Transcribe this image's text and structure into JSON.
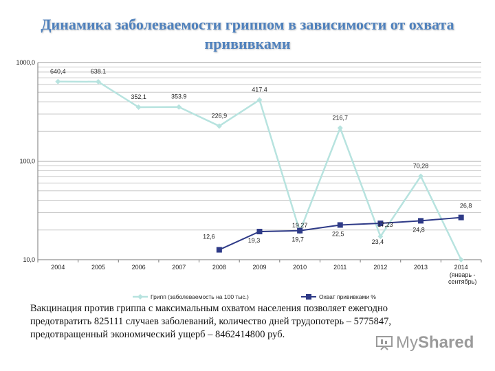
{
  "title": "Динамика заболеваемости гриппом в зависимости от охвата прививками",
  "caption": "Вакцинация против гриппа с максимальным охватом населения позволяет ежегодно предотвратить 825111 случаев заболеваний, количество дней трудопотерь – 5775847, предотвращенный экономический ущерб – 8462414800 руб.",
  "logo": {
    "text_regular": "My",
    "text_bold": "Shared"
  },
  "chart_data": {
    "type": "line",
    "title": "",
    "xlabel": "",
    "ylabel": "",
    "categories": [
      "2004",
      "2005",
      "2006",
      "2007",
      "2008",
      "2009",
      "2010",
      "2011",
      "2012",
      "2013",
      "2014"
    ],
    "category_sublabels": {
      "2014": [
        "(январь -",
        "сентябрь)"
      ]
    },
    "y_scale": "log",
    "ylim": [
      10,
      1000
    ],
    "y_ticks": [
      {
        "value": 10,
        "label": "10,0"
      },
      {
        "value": 100,
        "label": "100,0"
      },
      {
        "value": 1000,
        "label": "1000,0"
      }
    ],
    "grid": true,
    "legend_position": "bottom",
    "series": [
      {
        "name": "Грипп (заболеваемость на 100 тыс.)",
        "color": "#b7e3df",
        "marker": "diamond",
        "values": [
          640.4,
          638.1,
          352.1,
          353.9,
          226.9,
          417.4,
          19.27,
          216.7,
          17.23,
          70.28,
          10.0
        ],
        "labels": [
          "640,4",
          "638.1",
          "352,1",
          "353.9",
          "226,9",
          "417.4",
          "19,27",
          "216,7",
          "17,23",
          "70,28",
          ""
        ]
      },
      {
        "name": "Охват прививками %",
        "color": "#2e3a87",
        "marker": "square",
        "values": [
          null,
          null,
          null,
          null,
          12.6,
          19.3,
          19.7,
          22.5,
          23.4,
          24.8,
          26.8
        ],
        "labels": [
          "",
          "",
          "",
          "",
          "12,6",
          "19,3",
          "19,7",
          "22,5",
          "23,4",
          "24,8",
          "26,8"
        ]
      }
    ]
  }
}
